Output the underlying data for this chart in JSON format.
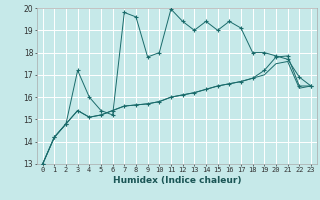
{
  "xlabel": "Humidex (Indice chaleur)",
  "bg_color": "#c6e9e9",
  "grid_color": "#ffffff",
  "line_color": "#1a6b6b",
  "x_values": [
    0,
    1,
    2,
    3,
    4,
    5,
    6,
    7,
    8,
    9,
    10,
    11,
    12,
    13,
    14,
    15,
    16,
    17,
    18,
    19,
    20,
    21,
    22,
    23
  ],
  "line1": [
    13.0,
    14.2,
    14.8,
    17.2,
    16.0,
    15.4,
    15.2,
    19.8,
    19.6,
    17.8,
    18.0,
    19.95,
    19.4,
    19.0,
    19.4,
    19.0,
    19.4,
    19.1,
    18.0,
    18.0,
    17.85,
    17.7,
    16.9,
    16.5
  ],
  "line2": [
    13.0,
    14.2,
    14.8,
    15.4,
    15.1,
    15.2,
    15.4,
    15.6,
    15.65,
    15.7,
    15.8,
    16.0,
    16.1,
    16.2,
    16.35,
    16.5,
    16.6,
    16.7,
    16.85,
    17.2,
    17.8,
    17.85,
    16.5,
    16.5
  ],
  "line3": [
    13.0,
    14.2,
    14.8,
    15.4,
    15.1,
    15.2,
    15.4,
    15.6,
    15.65,
    15.7,
    15.8,
    16.0,
    16.1,
    16.2,
    16.35,
    16.5,
    16.6,
    16.7,
    16.85,
    17.0,
    17.5,
    17.6,
    16.4,
    16.5
  ],
  "ylim": [
    13,
    20
  ],
  "xlim": [
    -0.5,
    23.5
  ],
  "yticks": [
    13,
    14,
    15,
    16,
    17,
    18,
    19,
    20
  ],
  "xticks": [
    0,
    1,
    2,
    3,
    4,
    5,
    6,
    7,
    8,
    9,
    10,
    11,
    12,
    13,
    14,
    15,
    16,
    17,
    18,
    19,
    20,
    21,
    22,
    23
  ],
  "xlabel_fontsize": 6.5,
  "tick_fontsize": 5.0,
  "ytick_fontsize": 5.5
}
